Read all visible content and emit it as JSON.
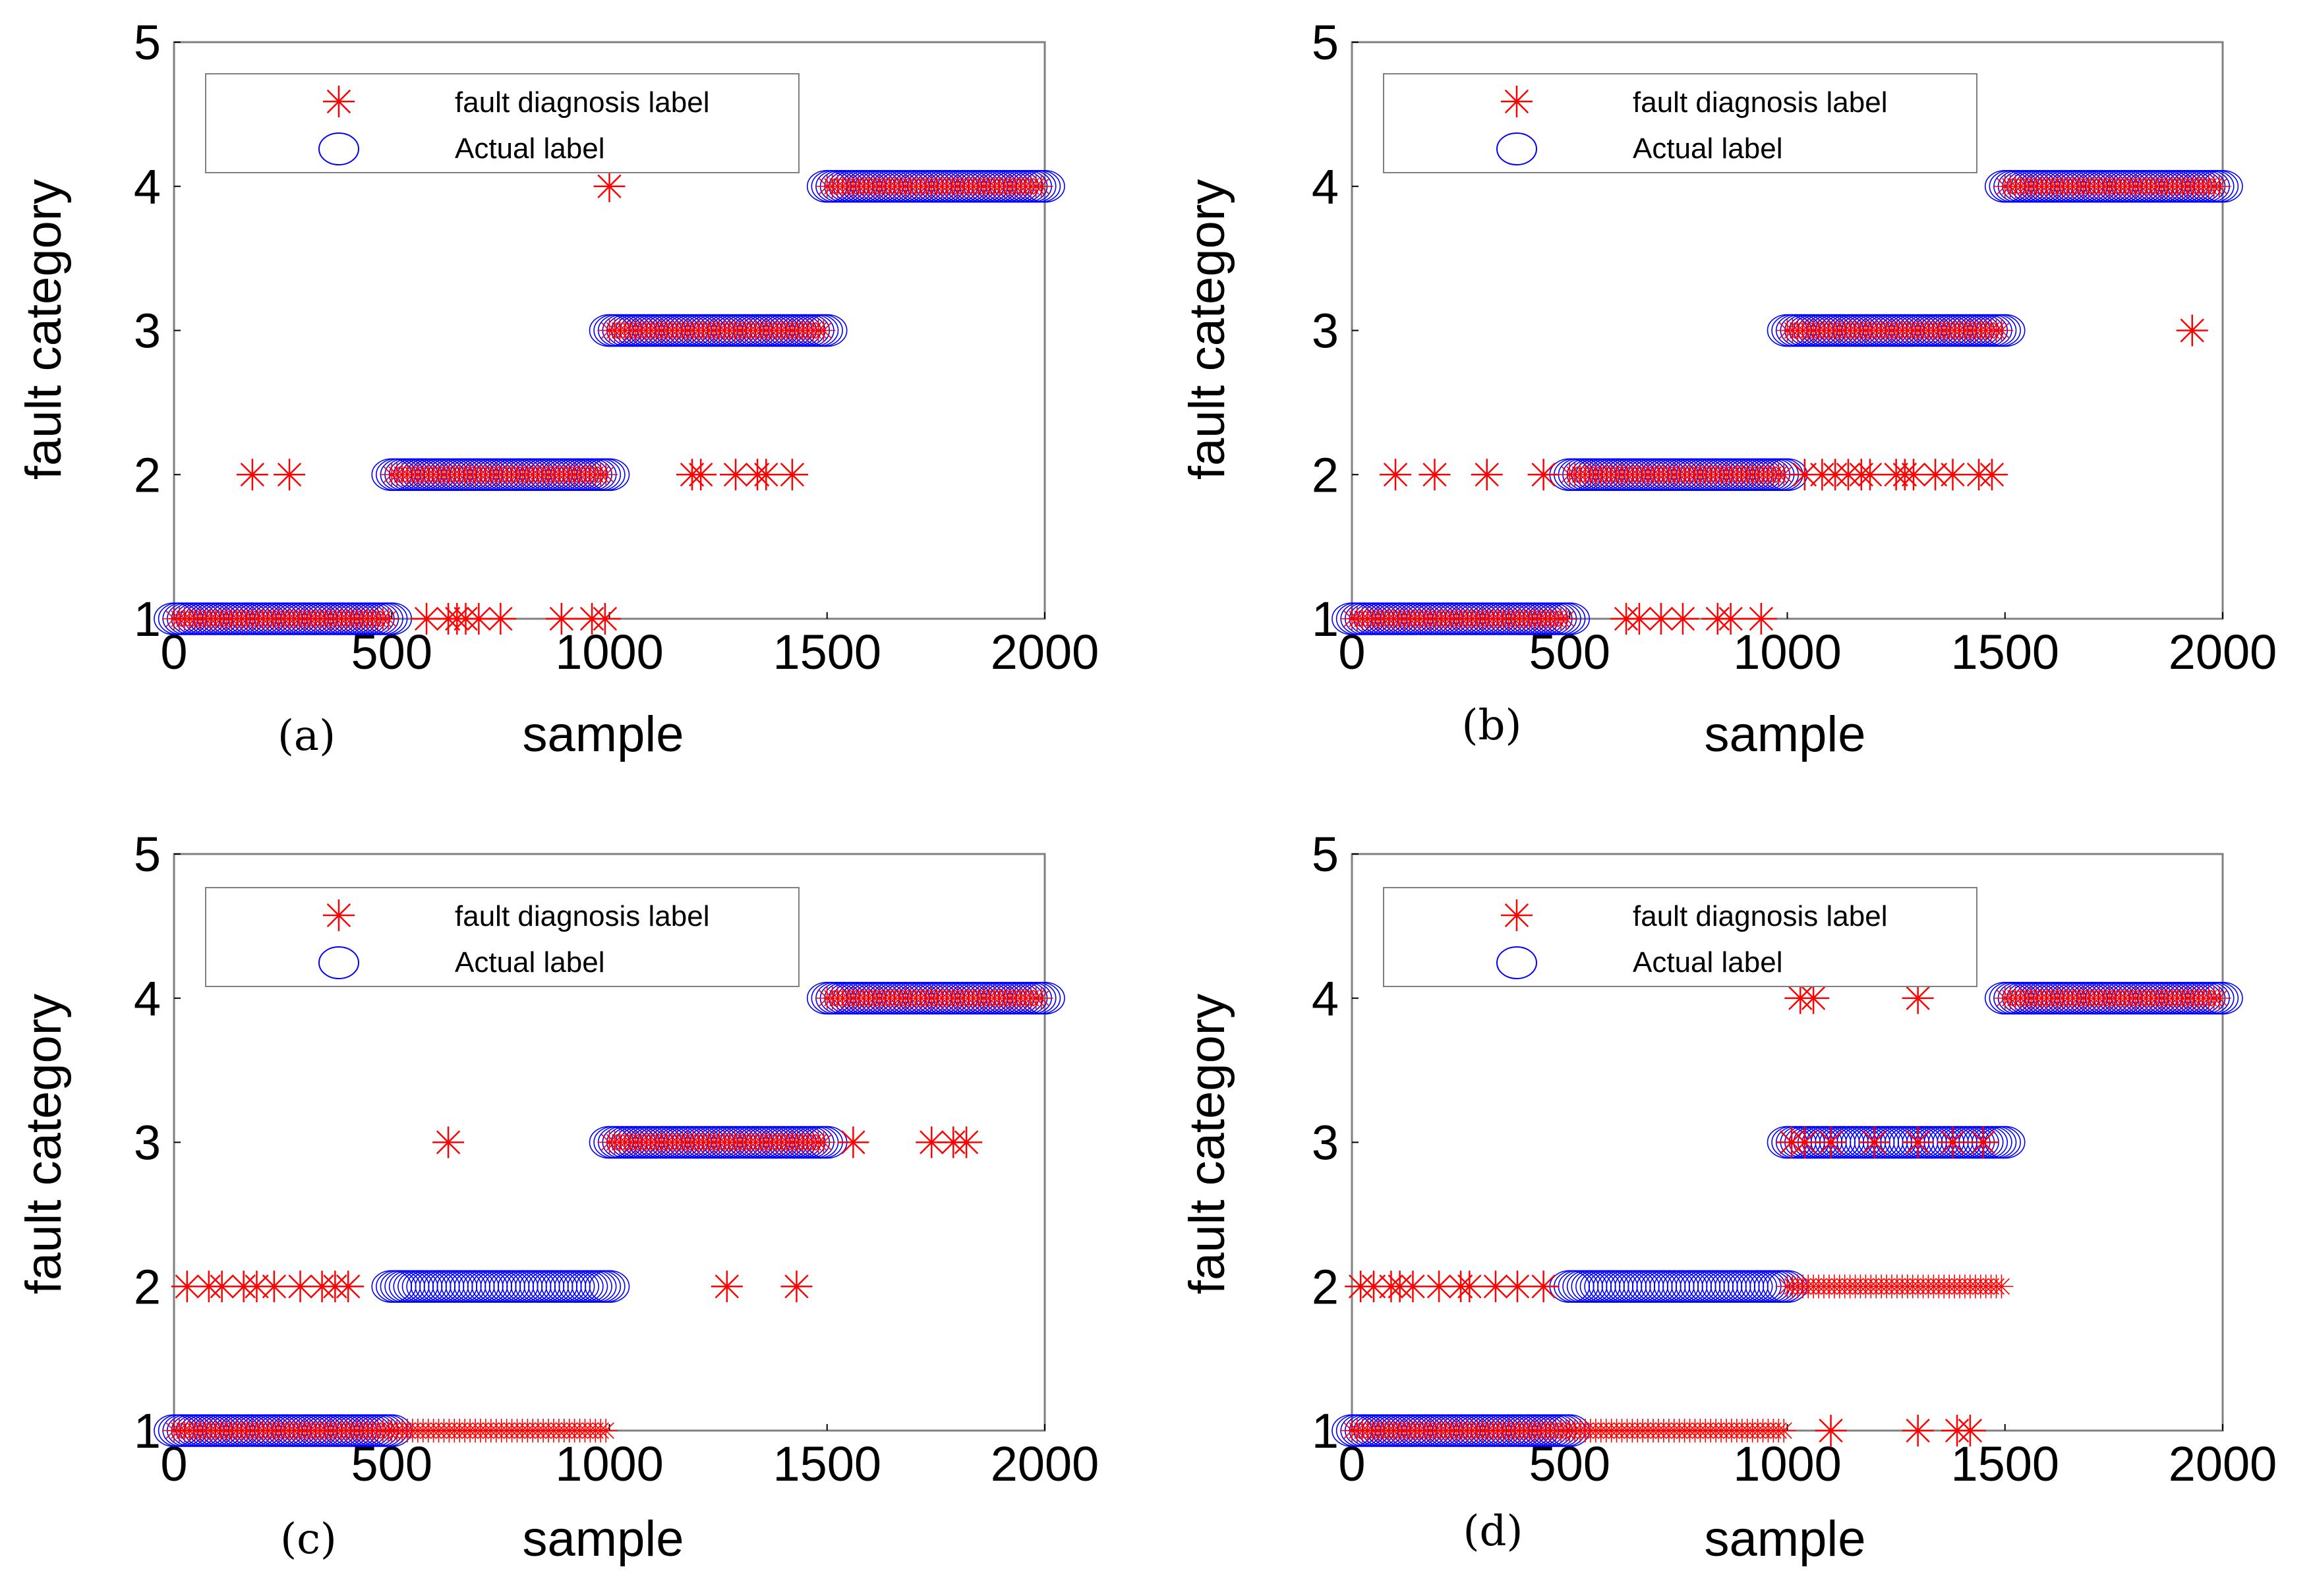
{
  "figure": {
    "colors": {
      "star": "#ff0000",
      "circle": "#0000ff",
      "axis": "#000000",
      "frame": "#808080"
    }
  },
  "chart_data": [
    {
      "type": "scatter",
      "panel_label": "(a)",
      "xlabel": "sample",
      "ylabel": "fault category",
      "xlim": [
        0,
        2000
      ],
      "ylim": [
        1,
        5
      ],
      "xticks": [
        "0",
        "500",
        "1000",
        "1500",
        "2000"
      ],
      "yticks": [
        "1",
        "2",
        "3",
        "4",
        "5"
      ],
      "legend": {
        "position": "top-left",
        "entries": [
          "fault diagnosis label",
          "Actual label"
        ]
      },
      "series": [
        {
          "name": "Actual label",
          "marker": "circle",
          "segments": [
            {
              "from": 0,
              "to": 500,
              "value": 1
            },
            {
              "from": 500,
              "to": 1000,
              "value": 2
            },
            {
              "from": 1000,
              "to": 1500,
              "value": 3
            },
            {
              "from": 1500,
              "to": 2000,
              "value": 4
            }
          ]
        },
        {
          "name": "fault diagnosis label",
          "marker": "star",
          "segments": [
            {
              "from": 0,
              "to": 500,
              "value": 1
            },
            {
              "from": 500,
              "to": 1000,
              "value": 2
            },
            {
              "from": 1000,
              "to": 1500,
              "value": 3
            },
            {
              "from": 1500,
              "to": 2000,
              "value": 4
            }
          ],
          "points": [
            {
              "x": 180,
              "y": 2
            },
            {
              "x": 265,
              "y": 2
            },
            {
              "x": 580,
              "y": 1
            },
            {
              "x": 630,
              "y": 1
            },
            {
              "x": 650,
              "y": 1
            },
            {
              "x": 670,
              "y": 1
            },
            {
              "x": 700,
              "y": 1
            },
            {
              "x": 750,
              "y": 1
            },
            {
              "x": 890,
              "y": 1
            },
            {
              "x": 960,
              "y": 1
            },
            {
              "x": 990,
              "y": 1
            },
            {
              "x": 1000,
              "y": 4
            },
            {
              "x": 1190,
              "y": 2
            },
            {
              "x": 1210,
              "y": 2
            },
            {
              "x": 1290,
              "y": 2
            },
            {
              "x": 1340,
              "y": 2
            },
            {
              "x": 1360,
              "y": 2
            },
            {
              "x": 1420,
              "y": 2
            }
          ]
        }
      ]
    },
    {
      "type": "scatter",
      "panel_label": "(b)",
      "xlabel": "sample",
      "ylabel": "fault category",
      "xlim": [
        0,
        2000
      ],
      "ylim": [
        1,
        5
      ],
      "xticks": [
        "0",
        "500",
        "1000",
        "1500",
        "2000"
      ],
      "yticks": [
        "1",
        "2",
        "3",
        "4",
        "5"
      ],
      "legend": {
        "position": "top-left",
        "entries": [
          "fault diagnosis label",
          "Actual label"
        ]
      },
      "series": [
        {
          "name": "Actual label",
          "marker": "circle",
          "segments": [
            {
              "from": 0,
              "to": 500,
              "value": 1
            },
            {
              "from": 500,
              "to": 1000,
              "value": 2
            },
            {
              "from": 1000,
              "to": 1500,
              "value": 3
            },
            {
              "from": 1500,
              "to": 2000,
              "value": 4
            }
          ]
        },
        {
          "name": "fault diagnosis label",
          "marker": "star",
          "segments": [
            {
              "from": 0,
              "to": 500,
              "value": 1
            },
            {
              "from": 500,
              "to": 1000,
              "value": 2
            },
            {
              "from": 1000,
              "to": 1500,
              "value": 3
            },
            {
              "from": 1500,
              "to": 2000,
              "value": 4
            }
          ],
          "points": [
            {
              "x": 100,
              "y": 2
            },
            {
              "x": 190,
              "y": 2
            },
            {
              "x": 310,
              "y": 2
            },
            {
              "x": 440,
              "y": 2
            },
            {
              "x": 630,
              "y": 1
            },
            {
              "x": 660,
              "y": 1
            },
            {
              "x": 710,
              "y": 1
            },
            {
              "x": 760,
              "y": 1
            },
            {
              "x": 840,
              "y": 1
            },
            {
              "x": 870,
              "y": 1
            },
            {
              "x": 940,
              "y": 1
            },
            {
              "x": 1040,
              "y": 2
            },
            {
              "x": 1080,
              "y": 2
            },
            {
              "x": 1110,
              "y": 2
            },
            {
              "x": 1140,
              "y": 2
            },
            {
              "x": 1170,
              "y": 2
            },
            {
              "x": 1190,
              "y": 2
            },
            {
              "x": 1250,
              "y": 2
            },
            {
              "x": 1270,
              "y": 2
            },
            {
              "x": 1290,
              "y": 2
            },
            {
              "x": 1340,
              "y": 2
            },
            {
              "x": 1380,
              "y": 2
            },
            {
              "x": 1440,
              "y": 2
            },
            {
              "x": 1470,
              "y": 2
            },
            {
              "x": 1930,
              "y": 3
            }
          ]
        }
      ]
    },
    {
      "type": "scatter",
      "panel_label": "(c)",
      "xlabel": "sample",
      "ylabel": "fault category",
      "xlim": [
        0,
        2000
      ],
      "ylim": [
        1,
        5
      ],
      "xticks": [
        "0",
        "500",
        "1000",
        "1500",
        "2000"
      ],
      "yticks": [
        "1",
        "2",
        "3",
        "4",
        "5"
      ],
      "legend": {
        "position": "top-left",
        "entries": [
          "fault diagnosis label",
          "Actual label"
        ]
      },
      "series": [
        {
          "name": "Actual label",
          "marker": "circle",
          "segments": [
            {
              "from": 0,
              "to": 500,
              "value": 1
            },
            {
              "from": 500,
              "to": 1000,
              "value": 2
            },
            {
              "from": 1000,
              "to": 1500,
              "value": 3
            },
            {
              "from": 1500,
              "to": 2000,
              "value": 4
            }
          ]
        },
        {
          "name": "fault diagnosis label",
          "marker": "star",
          "segments": [
            {
              "from": 0,
              "to": 500,
              "value": 1
            },
            {
              "from": 500,
              "to": 1000,
              "value": 1
            },
            {
              "from": 1000,
              "to": 1500,
              "value": 3
            },
            {
              "from": 1500,
              "to": 2000,
              "value": 4
            }
          ],
          "points": [
            {
              "x": 30,
              "y": 2
            },
            {
              "x": 80,
              "y": 2
            },
            {
              "x": 110,
              "y": 2
            },
            {
              "x": 160,
              "y": 2
            },
            {
              "x": 190,
              "y": 2
            },
            {
              "x": 230,
              "y": 2
            },
            {
              "x": 290,
              "y": 2
            },
            {
              "x": 340,
              "y": 2
            },
            {
              "x": 370,
              "y": 2
            },
            {
              "x": 400,
              "y": 2
            },
            {
              "x": 630,
              "y": 3
            },
            {
              "x": 1270,
              "y": 2
            },
            {
              "x": 1430,
              "y": 2
            },
            {
              "x": 1560,
              "y": 3
            },
            {
              "x": 1740,
              "y": 3
            },
            {
              "x": 1790,
              "y": 3
            },
            {
              "x": 1820,
              "y": 3
            }
          ]
        }
      ]
    },
    {
      "type": "scatter",
      "panel_label": "(d)",
      "xlabel": "sample",
      "ylabel": "fault category",
      "xlim": [
        0,
        2000
      ],
      "ylim": [
        1,
        5
      ],
      "xticks": [
        "0",
        "500",
        "1000",
        "1500",
        "2000"
      ],
      "yticks": [
        "1",
        "2",
        "3",
        "4",
        "5"
      ],
      "legend": {
        "position": "top-left",
        "entries": [
          "fault diagnosis label",
          "Actual label"
        ]
      },
      "series": [
        {
          "name": "Actual label",
          "marker": "circle",
          "segments": [
            {
              "from": 0,
              "to": 500,
              "value": 1
            },
            {
              "from": 500,
              "to": 1000,
              "value": 2
            },
            {
              "from": 1000,
              "to": 1500,
              "value": 3
            },
            {
              "from": 1500,
              "to": 2000,
              "value": 4
            }
          ]
        },
        {
          "name": "fault diagnosis label",
          "marker": "star",
          "segments": [
            {
              "from": 0,
              "to": 500,
              "value": 1
            },
            {
              "from": 500,
              "to": 1000,
              "value": 1
            },
            {
              "from": 1000,
              "to": 1500,
              "value": 2
            },
            {
              "from": 1500,
              "to": 2000,
              "value": 4
            }
          ],
          "points": [
            {
              "x": 20,
              "y": 2
            },
            {
              "x": 50,
              "y": 2
            },
            {
              "x": 90,
              "y": 2
            },
            {
              "x": 110,
              "y": 2
            },
            {
              "x": 140,
              "y": 2
            },
            {
              "x": 200,
              "y": 2
            },
            {
              "x": 250,
              "y": 2
            },
            {
              "x": 270,
              "y": 2
            },
            {
              "x": 330,
              "y": 2
            },
            {
              "x": 380,
              "y": 2
            },
            {
              "x": 440,
              "y": 2
            },
            {
              "x": 1010,
              "y": 3
            },
            {
              "x": 1040,
              "y": 3
            },
            {
              "x": 1100,
              "y": 3
            },
            {
              "x": 1200,
              "y": 3
            },
            {
              "x": 1300,
              "y": 3
            },
            {
              "x": 1380,
              "y": 3
            },
            {
              "x": 1450,
              "y": 3
            },
            {
              "x": 1030,
              "y": 4
            },
            {
              "x": 1060,
              "y": 4
            },
            {
              "x": 1300,
              "y": 4
            },
            {
              "x": 1100,
              "y": 1
            },
            {
              "x": 1300,
              "y": 1
            },
            {
              "x": 1390,
              "y": 1
            },
            {
              "x": 1420,
              "y": 1
            }
          ]
        }
      ]
    }
  ]
}
